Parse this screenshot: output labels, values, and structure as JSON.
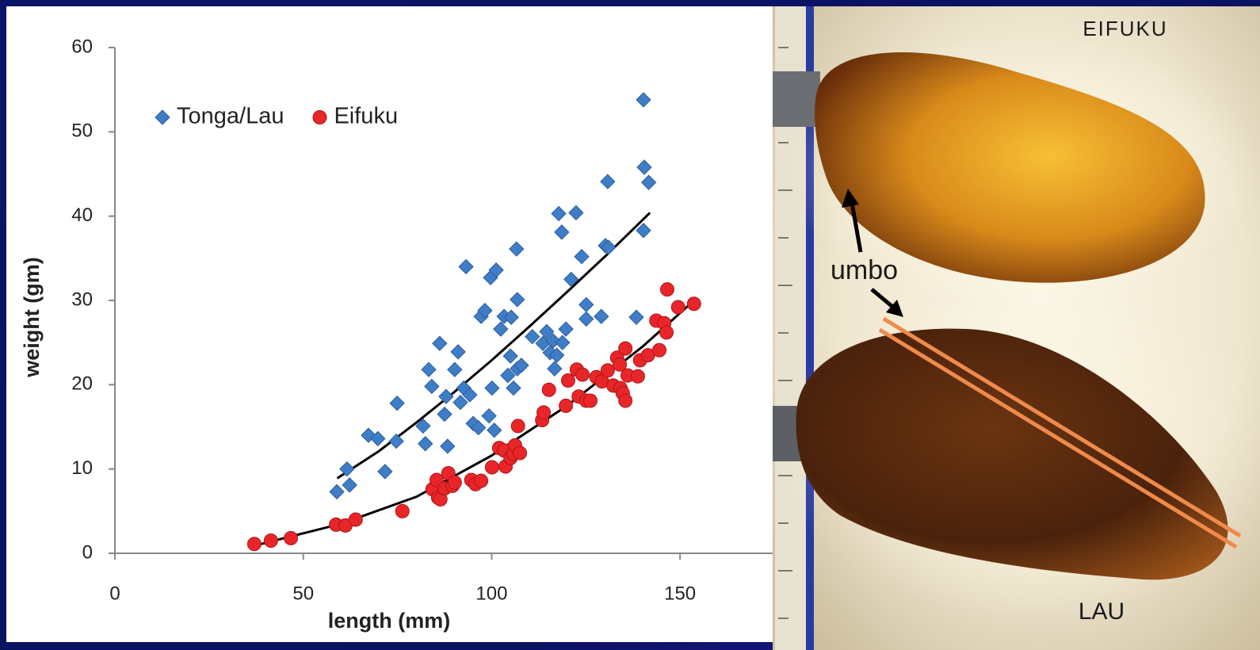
{
  "chart_data": {
    "type": "scatter",
    "x_label": "length (mm)",
    "y_label": "weight (gm)",
    "xlim": [
      0,
      175
    ],
    "ylim": [
      0,
      60
    ],
    "xticks": [
      0,
      50,
      100,
      150
    ],
    "yticks": [
      0,
      10,
      20,
      30,
      40,
      50,
      60
    ],
    "grid": false,
    "legend": "upper left",
    "series": [
      {
        "name": "Tonga/Lau",
        "color": "#3f7dc7",
        "marker": "diamond",
        "x": [
          58.9,
          61.6,
          62.3,
          67.3,
          69.8,
          71.7,
          74.7,
          74.9,
          81.8,
          82.4,
          83.3,
          84.1,
          86.2,
          87.5,
          87.9,
          88.3,
          90.2,
          91.1,
          91.7,
          92.6,
          93.2,
          94.2,
          95.1,
          96.5,
          97.2,
          98.2,
          99.3,
          99.7,
          100.1,
          100.7,
          101.2,
          102.4,
          103.3,
          104.3,
          105.0,
          105.2,
          105.8,
          106.6,
          106.8,
          106.8,
          107.9,
          110.8,
          113.6,
          114.6,
          115.5,
          116.3,
          116.7,
          117.3,
          117.8,
          118.6,
          118.8,
          119.7,
          121.1,
          122.4,
          123.9,
          125.1,
          125.1,
          129.1,
          130.2,
          130.8,
          131.0,
          138.4,
          140.3,
          140.3,
          140.5,
          141.7
        ],
        "values": [
          7.3,
          10.0,
          8.1,
          14.0,
          13.6,
          9.7,
          13.3,
          17.8,
          15.1,
          13.0,
          21.8,
          19.8,
          24.9,
          16.5,
          18.6,
          12.7,
          21.8,
          23.9,
          17.9,
          19.6,
          34.0,
          18.8,
          15.4,
          14.9,
          28.1,
          28.8,
          16.3,
          32.7,
          19.6,
          14.6,
          33.6,
          26.6,
          28.1,
          21.1,
          23.4,
          28.0,
          19.6,
          36.1,
          30.1,
          21.9,
          22.3,
          25.7,
          24.9,
          26.3,
          23.8,
          25.2,
          21.9,
          23.5,
          40.3,
          38.1,
          25.0,
          26.6,
          32.5,
          40.4,
          35.2,
          29.5,
          27.8,
          28.1,
          36.5,
          44.1,
          36.3,
          28.0,
          53.8,
          38.3,
          45.8,
          44.0
        ]
      },
      {
        "name": "Eifuku",
        "color": "#e8262a",
        "marker": "circle",
        "x": [
          37.0,
          41.4,
          46.7,
          58.7,
          61.2,
          63.9,
          76.3,
          84.3,
          85.4,
          85.8,
          86.4,
          87.5,
          88.5,
          89.6,
          90.2,
          94.6,
          95.7,
          97.2,
          100.1,
          102.0,
          103.3,
          103.7,
          105.0,
          105.8,
          106.2,
          107.0,
          107.5,
          113.4,
          113.8,
          115.2,
          119.7,
          120.3,
          122.6,
          123.1,
          124.1,
          125.1,
          126.2,
          127.8,
          129.3,
          130.8,
          132.3,
          133.3,
          134.0,
          134.2,
          134.8,
          135.5,
          135.5,
          136.1,
          138.8,
          139.4,
          141.5,
          143.7,
          144.5,
          145.8,
          146.4,
          146.6,
          149.5,
          153.7
        ],
        "values": [
          1.1,
          1.5,
          1.8,
          3.4,
          3.3,
          4.0,
          5.0,
          7.6,
          8.7,
          6.6,
          6.4,
          7.7,
          9.5,
          8.0,
          8.4,
          8.7,
          8.2,
          8.6,
          10.2,
          12.5,
          12.2,
          10.3,
          11.3,
          11.8,
          12.8,
          15.1,
          11.9,
          15.8,
          16.7,
          19.4,
          17.5,
          20.5,
          21.8,
          18.6,
          21.2,
          18.1,
          18.1,
          20.9,
          20.4,
          21.7,
          19.9,
          23.2,
          22.4,
          19.6,
          19.0,
          24.3,
          18.1,
          21.1,
          21.0,
          22.9,
          23.5,
          27.6,
          24.1,
          27.3,
          26.2,
          31.3,
          29.2,
          29.6
        ]
      }
    ],
    "trendlines": [
      {
        "color": "#000000",
        "x": [
          59,
          70,
          80,
          90,
          100,
          110,
          120,
          131,
          142
        ],
        "values": [
          8.9,
          12.1,
          15.5,
          19.1,
          22.9,
          26.9,
          31,
          35.6,
          40.4
        ]
      },
      {
        "color": "#000000",
        "x": [
          37,
          60,
          80,
          100,
          120,
          140,
          154
        ],
        "values": [
          0.9,
          3.5,
          6.7,
          11.6,
          17.5,
          24.5,
          30.1
        ]
      }
    ]
  },
  "photo": {
    "top_label": "EIFUKU",
    "pointer_label": "umbo",
    "bottom_label": "LAU"
  }
}
